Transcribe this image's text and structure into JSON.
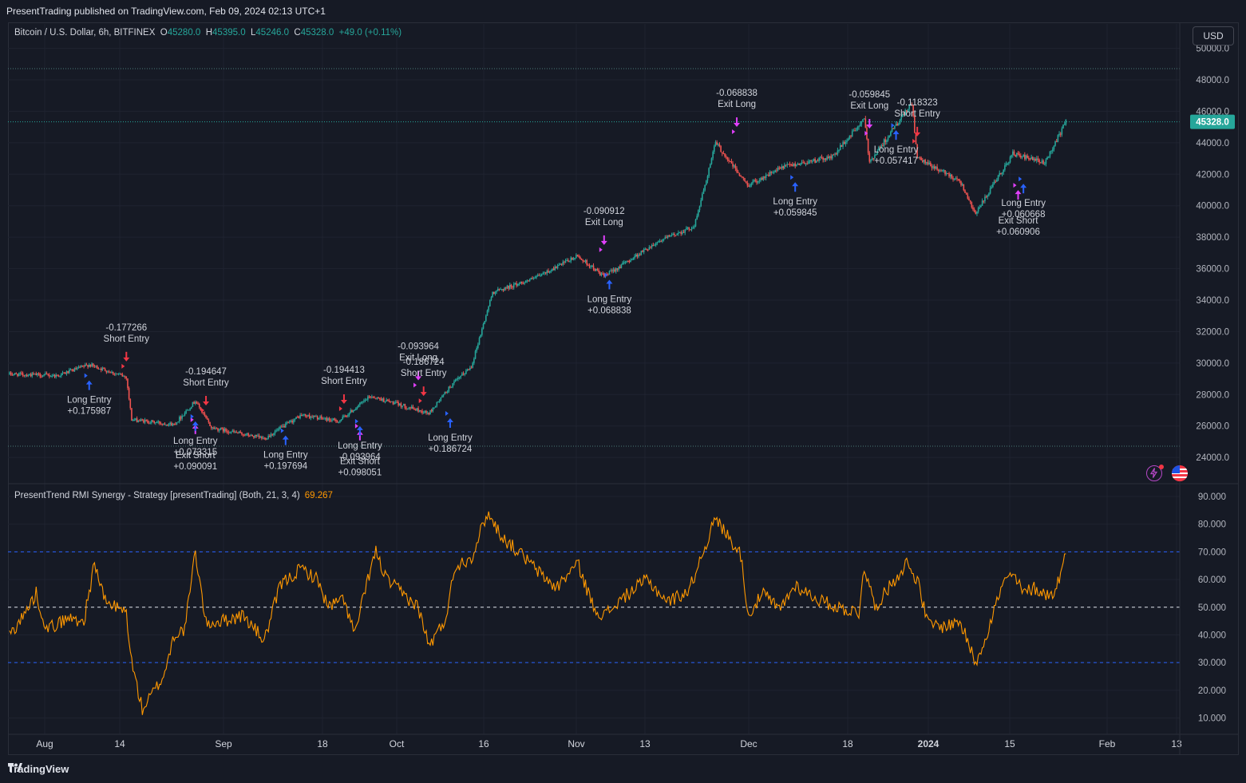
{
  "header": {
    "published": "PresentTrading published on TradingView.com, Feb 09, 2024 02:13 UTC+1"
  },
  "legend": {
    "symbol": "Bitcoin / U.S. Dollar, 6h, BITFINEX",
    "o_label": "O",
    "o": "45280.0",
    "h_label": "H",
    "h": "45395.0",
    "l_label": "L",
    "l": "45246.0",
    "c_label": "C",
    "c": "45328.0",
    "change": "+49.0 (+0.11%)"
  },
  "currency_button": "USD",
  "last_price_label": "45328.0",
  "indicator": {
    "title": "PresentTrend RMI Synergy - Strategy [presentTrading] (Both, 21, 3, 4)",
    "value": "69.267"
  },
  "footer": {
    "brand": "TradingView"
  },
  "colors": {
    "up": "#26a69a",
    "down": "#ef5350",
    "rmi": "#ff9800",
    "long_arrow": "#2962ff",
    "short_arrow": "#f23645",
    "exit_arrow": "#e040fb",
    "band": "#2962ff"
  },
  "chart_data": [
    {
      "type": "candlestick",
      "price_axis": {
        "ticks": [
          "24000.0",
          "26000.0",
          "28000.0",
          "30000.0",
          "32000.0",
          "34000.0",
          "36000.0",
          "38000.0",
          "40000.0",
          "42000.0",
          "44000.0",
          "46000.0",
          "48000.0",
          "50000.0"
        ],
        "ylim": [
          23000,
          50500
        ]
      },
      "time_axis": {
        "ticks": [
          "Aug",
          "14",
          "Sep",
          "18",
          "Oct",
          "16",
          "Nov",
          "13",
          "Dec",
          "18",
          "2024",
          "15",
          "Feb",
          "13"
        ]
      },
      "series_anchors": [
        {
          "date": "2023-07-25",
          "close": 29300
        },
        {
          "date": "2023-08-03",
          "close": 29200
        },
        {
          "date": "2023-08-09",
          "close": 29900
        },
        {
          "date": "2023-08-16",
          "close": 29100
        },
        {
          "date": "2023-08-17",
          "close": 26400
        },
        {
          "date": "2023-08-25",
          "close": 26100
        },
        {
          "date": "2023-08-29",
          "close": 27600
        },
        {
          "date": "2023-09-01",
          "close": 25900
        },
        {
          "date": "2023-09-11",
          "close": 25200
        },
        {
          "date": "2023-09-18",
          "close": 26700
        },
        {
          "date": "2023-09-25",
          "close": 26300
        },
        {
          "date": "2023-10-01",
          "close": 27900
        },
        {
          "date": "2023-10-12",
          "close": 26800
        },
        {
          "date": "2023-10-16",
          "close": 28500
        },
        {
          "date": "2023-10-20",
          "close": 29800
        },
        {
          "date": "2023-10-24",
          "close": 34500
        },
        {
          "date": "2023-11-01",
          "close": 35400
        },
        {
          "date": "2023-11-09",
          "close": 36800
        },
        {
          "date": "2023-11-14",
          "close": 35500
        },
        {
          "date": "2023-11-24",
          "close": 37700
        },
        {
          "date": "2023-12-01",
          "close": 38700
        },
        {
          "date": "2023-12-05",
          "close": 44000
        },
        {
          "date": "2023-12-11",
          "close": 41300
        },
        {
          "date": "2023-12-18",
          "close": 42500
        },
        {
          "date": "2023-12-27",
          "close": 43100
        },
        {
          "date": "2024-01-02",
          "close": 45500
        },
        {
          "date": "2024-01-03",
          "close": 42800
        },
        {
          "date": "2024-01-11",
          "close": 46500
        },
        {
          "date": "2024-01-12",
          "close": 43000
        },
        {
          "date": "2024-01-20",
          "close": 41600
        },
        {
          "date": "2024-01-23",
          "close": 39500
        },
        {
          "date": "2024-01-30",
          "close": 43300
        },
        {
          "date": "2024-02-05",
          "close": 42700
        },
        {
          "date": "2024-02-09",
          "close": 45328
        }
      ],
      "signals": [
        {
          "date": "2023-08-09",
          "price": 29200,
          "kind": "long",
          "lines": [
            "Long Entry",
            "+0.175987"
          ],
          "pos": "below"
        },
        {
          "date": "2023-08-16",
          "price": 29800,
          "kind": "short",
          "lines": [
            "-0.177266",
            "Short Entry"
          ],
          "pos": "above"
        },
        {
          "date": "2023-08-29",
          "price": 26400,
          "kind": "exit-short",
          "lines": [
            "Exit Short",
            "+0.090091"
          ],
          "pos": "below2"
        },
        {
          "date": "2023-08-29",
          "price": 26600,
          "kind": "long",
          "lines": [
            "Long Entry",
            "+0.073315"
          ],
          "pos": "below"
        },
        {
          "date": "2023-08-31",
          "price": 27000,
          "kind": "short",
          "lines": [
            "-0.194647",
            "Short Entry"
          ],
          "pos": "above"
        },
        {
          "date": "2023-09-15",
          "price": 25700,
          "kind": "long",
          "lines": [
            "Long Entry",
            "+0.197694"
          ],
          "pos": "below"
        },
        {
          "date": "2023-09-26",
          "price": 27100,
          "kind": "short",
          "lines": [
            "-0.194413",
            "Short Entry"
          ],
          "pos": "above"
        },
        {
          "date": "2023-09-29",
          "price": 26000,
          "kind": "exit-short",
          "lines": [
            "Exit Short",
            "+0.098051"
          ],
          "pos": "below2"
        },
        {
          "date": "2023-09-29",
          "price": 26300,
          "kind": "long",
          "lines": [
            "Long Entry",
            "-0.093964"
          ],
          "pos": "below"
        },
        {
          "date": "2023-10-10",
          "price": 28600,
          "kind": "exit-long",
          "lines": [
            "-0.093964",
            "Exit Long"
          ],
          "pos": "above"
        },
        {
          "date": "2023-10-11",
          "price": 27600,
          "kind": "short",
          "lines": [
            "-0.186724",
            "Short Entry"
          ],
          "pos": "above"
        },
        {
          "date": "2023-10-16",
          "price": 26800,
          "kind": "long",
          "lines": [
            "Long Entry",
            "+0.186724"
          ],
          "pos": "below"
        },
        {
          "date": "2023-11-14",
          "price": 37200,
          "kind": "exit-long",
          "lines": [
            "-0.090912",
            "Exit Long"
          ],
          "pos": "above"
        },
        {
          "date": "2023-11-15",
          "price": 35600,
          "kind": "long",
          "lines": [
            "Long Entry",
            "+0.068838"
          ],
          "pos": "below"
        },
        {
          "date": "2023-12-09",
          "price": 44700,
          "kind": "exit-long",
          "lines": [
            "-0.068838",
            "Exit Long"
          ],
          "pos": "above"
        },
        {
          "date": "2023-12-20",
          "price": 41800,
          "kind": "long",
          "lines": [
            "Long Entry",
            "+0.059845"
          ],
          "pos": "below"
        },
        {
          "date": "2024-01-03",
          "price": 44600,
          "kind": "exit-long",
          "lines": [
            "-0.059845",
            "Exit Long"
          ],
          "pos": "above"
        },
        {
          "date": "2024-01-08",
          "price": 45100,
          "kind": "long",
          "lines": [
            "Long Entry",
            "+0.057417"
          ],
          "pos": "below"
        },
        {
          "date": "2024-01-12",
          "price": 44100,
          "kind": "short",
          "lines": [
            "-0.118323",
            "Short Entry"
          ],
          "pos": "above"
        },
        {
          "date": "2024-01-31",
          "price": 41300,
          "kind": "exit-short",
          "lines": [
            "Exit Short",
            "+0.060906"
          ],
          "pos": "below2"
        },
        {
          "date": "2024-02-01",
          "price": 41700,
          "kind": "long",
          "lines": [
            "Long Entry",
            "+0.060668"
          ],
          "pos": "below"
        }
      ]
    },
    {
      "type": "line",
      "series_name": "RMI",
      "value_axis": {
        "ticks": [
          "10.000",
          "20.000",
          "30.000",
          "40.000",
          "50.000",
          "60.000",
          "70.000",
          "80.000",
          "90.000"
        ],
        "ylim": [
          5,
          93
        ]
      },
      "bands": [
        30,
        50,
        70
      ],
      "anchors": [
        {
          "date": "2023-07-25",
          "v": 40
        },
        {
          "date": "2023-07-28",
          "v": 48
        },
        {
          "date": "2023-07-30",
          "v": 55
        },
        {
          "date": "2023-08-01",
          "v": 42
        },
        {
          "date": "2023-08-05",
          "v": 46
        },
        {
          "date": "2023-08-08",
          "v": 45
        },
        {
          "date": "2023-08-10",
          "v": 66
        },
        {
          "date": "2023-08-12",
          "v": 52
        },
        {
          "date": "2023-08-16",
          "v": 48
        },
        {
          "date": "2023-08-17",
          "v": 30
        },
        {
          "date": "2023-08-19",
          "v": 13
        },
        {
          "date": "2023-08-23",
          "v": 25
        },
        {
          "date": "2023-08-25",
          "v": 40
        },
        {
          "date": "2023-08-27",
          "v": 42
        },
        {
          "date": "2023-08-29",
          "v": 70
        },
        {
          "date": "2023-08-31",
          "v": 44
        },
        {
          "date": "2023-09-03",
          "v": 45
        },
        {
          "date": "2023-09-07",
          "v": 47
        },
        {
          "date": "2023-09-11",
          "v": 38
        },
        {
          "date": "2023-09-14",
          "v": 58
        },
        {
          "date": "2023-09-18",
          "v": 64
        },
        {
          "date": "2023-09-21",
          "v": 60
        },
        {
          "date": "2023-09-23",
          "v": 50
        },
        {
          "date": "2023-09-26",
          "v": 53
        },
        {
          "date": "2023-09-28",
          "v": 40
        },
        {
          "date": "2023-10-01",
          "v": 64
        },
        {
          "date": "2023-10-02",
          "v": 70
        },
        {
          "date": "2023-10-04",
          "v": 60
        },
        {
          "date": "2023-10-07",
          "v": 55
        },
        {
          "date": "2023-10-10",
          "v": 50
        },
        {
          "date": "2023-10-12",
          "v": 36
        },
        {
          "date": "2023-10-15",
          "v": 45
        },
        {
          "date": "2023-10-17",
          "v": 65
        },
        {
          "date": "2023-10-20",
          "v": 68
        },
        {
          "date": "2023-10-23",
          "v": 84
        },
        {
          "date": "2023-10-26",
          "v": 75
        },
        {
          "date": "2023-10-30",
          "v": 68
        },
        {
          "date": "2023-11-02",
          "v": 62
        },
        {
          "date": "2023-11-05",
          "v": 57
        },
        {
          "date": "2023-11-09",
          "v": 66
        },
        {
          "date": "2023-11-12",
          "v": 50
        },
        {
          "date": "2023-11-14",
          "v": 47
        },
        {
          "date": "2023-11-18",
          "v": 54
        },
        {
          "date": "2023-11-22",
          "v": 60
        },
        {
          "date": "2023-11-26",
          "v": 52
        },
        {
          "date": "2023-11-30",
          "v": 56
        },
        {
          "date": "2023-12-03",
          "v": 72
        },
        {
          "date": "2023-12-05",
          "v": 82
        },
        {
          "date": "2023-12-08",
          "v": 74
        },
        {
          "date": "2023-12-10",
          "v": 68
        },
        {
          "date": "2023-12-11",
          "v": 47
        },
        {
          "date": "2023-12-14",
          "v": 55
        },
        {
          "date": "2023-12-17",
          "v": 49
        },
        {
          "date": "2023-12-20",
          "v": 58
        },
        {
          "date": "2023-12-24",
          "v": 53
        },
        {
          "date": "2023-12-28",
          "v": 50
        },
        {
          "date": "2024-01-01",
          "v": 48
        },
        {
          "date": "2024-01-02",
          "v": 65
        },
        {
          "date": "2024-01-04",
          "v": 50
        },
        {
          "date": "2024-01-07",
          "v": 58
        },
        {
          "date": "2024-01-10",
          "v": 66
        },
        {
          "date": "2024-01-12",
          "v": 60
        },
        {
          "date": "2024-01-14",
          "v": 44
        },
        {
          "date": "2024-01-17",
          "v": 43
        },
        {
          "date": "2024-01-20",
          "v": 45
        },
        {
          "date": "2024-01-23",
          "v": 30
        },
        {
          "date": "2024-01-25",
          "v": 40
        },
        {
          "date": "2024-01-28",
          "v": 58
        },
        {
          "date": "2024-01-30",
          "v": 62
        },
        {
          "date": "2024-02-01",
          "v": 55
        },
        {
          "date": "2024-02-03",
          "v": 57
        },
        {
          "date": "2024-02-06",
          "v": 54
        },
        {
          "date": "2024-02-07",
          "v": 56
        },
        {
          "date": "2024-02-09",
          "v": 69.267
        }
      ]
    }
  ]
}
